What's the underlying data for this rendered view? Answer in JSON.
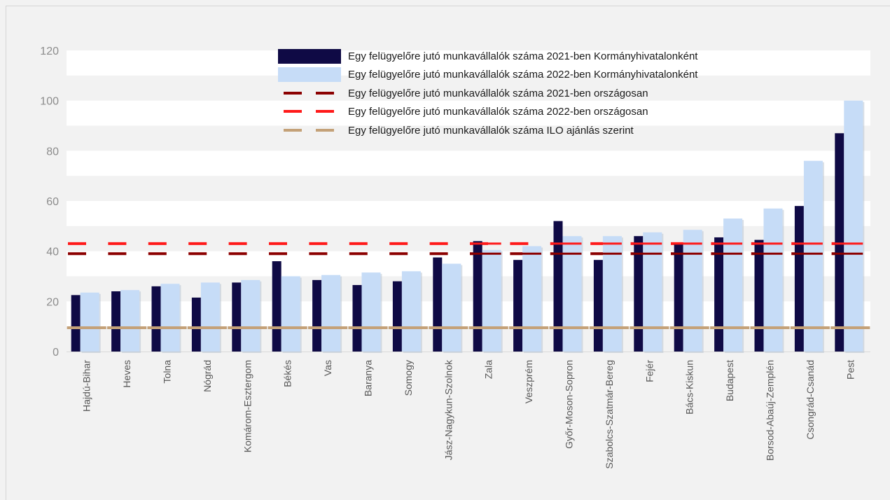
{
  "chart_data": {
    "type": "bar",
    "title": "",
    "xlabel": "",
    "ylabel": "",
    "ylim": [
      0,
      120
    ],
    "yticks": [
      0,
      20,
      40,
      60,
      80,
      100,
      120
    ],
    "grid": "horizontal bands",
    "legend_position": "top-center",
    "categories": [
      "Hajdú-Bihar",
      "Heves",
      "Tolna",
      "Nógrád",
      "Komárom-Esztergom",
      "Békés",
      "Vas",
      "Baranya",
      "Somogy",
      "Jász-Nagykun-Szolnok",
      "Zala",
      "Veszprém",
      "Győr-Moson-Sopron",
      "Szabolcs-Szatmár-Bereg",
      "Fejér",
      "Bács-Kiskun",
      "Budapest",
      "Borsod-Abaúj-Zemplén",
      "Csongrád-Csanád",
      "Pest"
    ],
    "series": [
      {
        "name": "Egy felügyelőre jutó munkavállalók száma 2021-ben Kormányhivatalonként",
        "kind": "bar",
        "color": "#0f0a45",
        "values": [
          22.5,
          24,
          26,
          21.5,
          27.5,
          36,
          28.5,
          26.5,
          28,
          37.5,
          44,
          36.5,
          52,
          36.5,
          46,
          43,
          45.5,
          44.5,
          58,
          87
        ]
      },
      {
        "name": "Egy felügyelőre jutó munkavállalók száma 2022-ben Kormányhivatalonként",
        "kind": "bar",
        "color": "#c6dcf7",
        "values": [
          23.5,
          24.5,
          27,
          27.5,
          28.5,
          30,
          30.5,
          31.5,
          32,
          35,
          40.5,
          42,
          46,
          46,
          47.5,
          48.5,
          53,
          57,
          76,
          100
        ]
      },
      {
        "name": "Egy felügyelőre jutó munkavállalók száma 2021-ben országosan",
        "kind": "dashed-line",
        "color": "#8b0000",
        "value": 39
      },
      {
        "name": "Egy felügyelőre jutó munkavállalók száma 2022-ben országosan",
        "kind": "dashed-line",
        "color": "#ff1a1a",
        "value": 43
      },
      {
        "name": "Egy felügyelőre jutó munkavállalók száma ILO ajánlás szerint",
        "kind": "dashed-line",
        "color": "#c4a178",
        "value": 9.5
      }
    ]
  }
}
